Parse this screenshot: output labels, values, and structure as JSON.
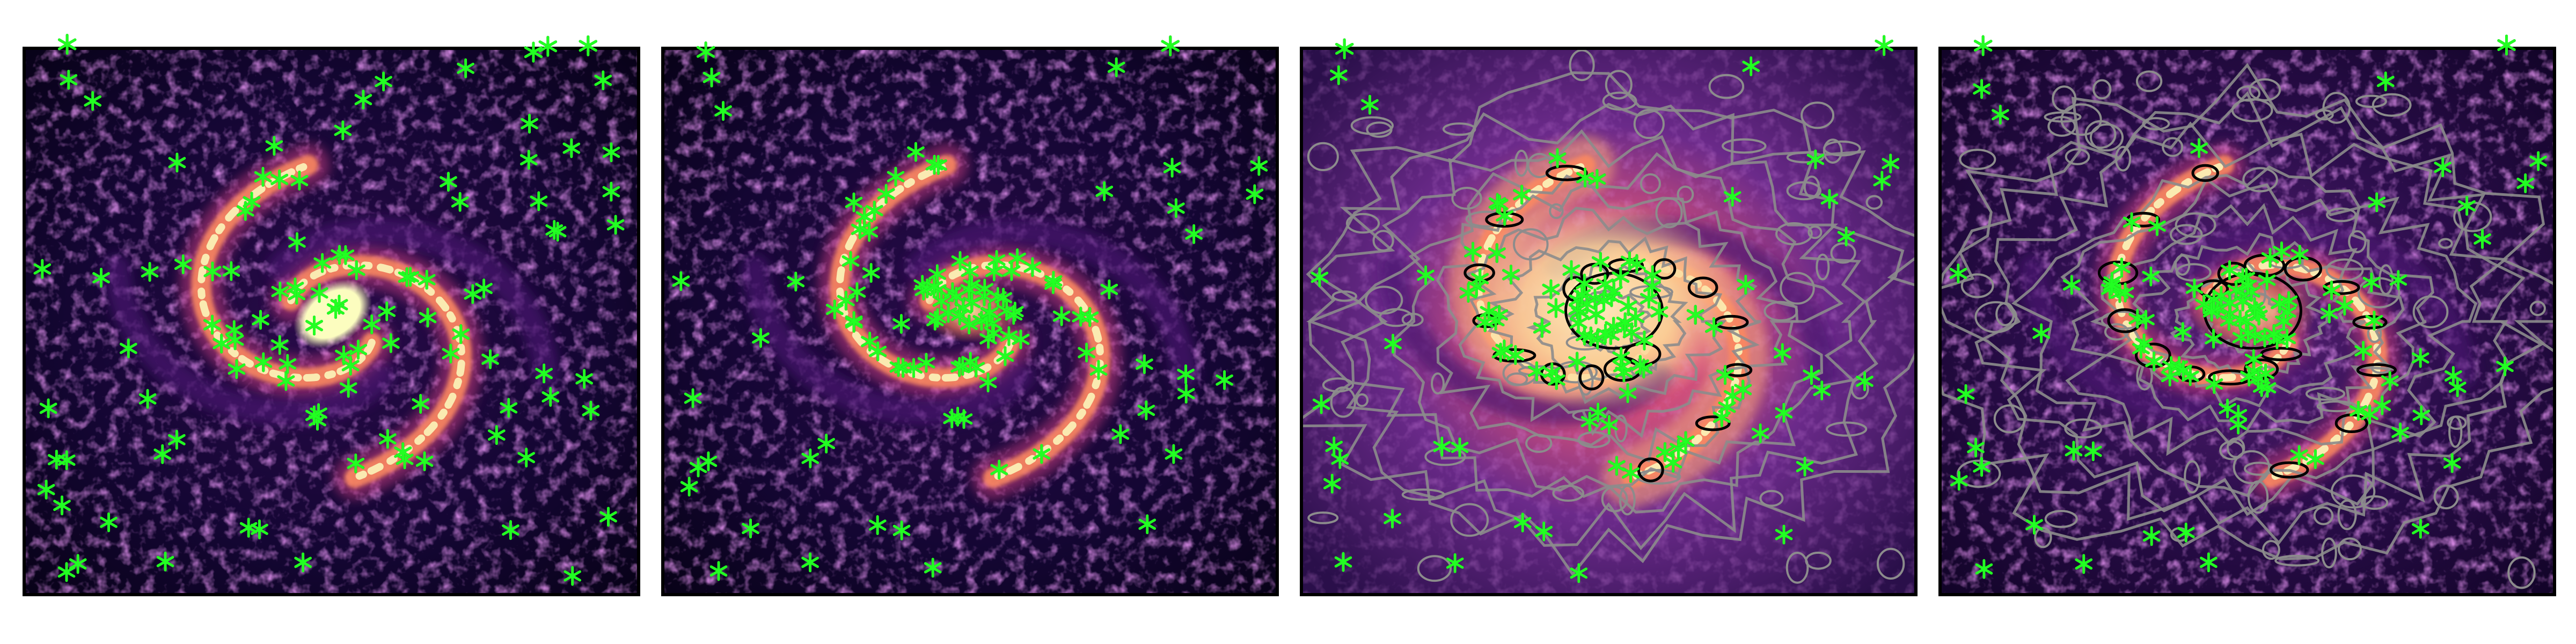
{
  "figure": {
    "panel_count": 4,
    "colormap": "magma",
    "marker_symbol": "asterisk",
    "colors": {
      "background": "#ffffff",
      "frame": "#000000",
      "marker": "#22ff22",
      "marker_outline": "#000000",
      "contour_outer": "#8c8c8c",
      "contour_inner": "#000000",
      "image_dark": "#0b0320",
      "image_mid": "#4a1670",
      "image_arm": "#b73779",
      "image_bright": "#fb8861",
      "image_core": "#fcfdbf"
    },
    "panels": [
      {
        "name": "panel-1",
        "contours": false,
        "core": "bright-bar"
      },
      {
        "name": "panel-2",
        "contours": false,
        "core": "faint"
      },
      {
        "name": "panel-3",
        "contours": true,
        "core": "diffuse-glow"
      },
      {
        "name": "panel-4",
        "contours": true,
        "core": "compact"
      }
    ]
  }
}
